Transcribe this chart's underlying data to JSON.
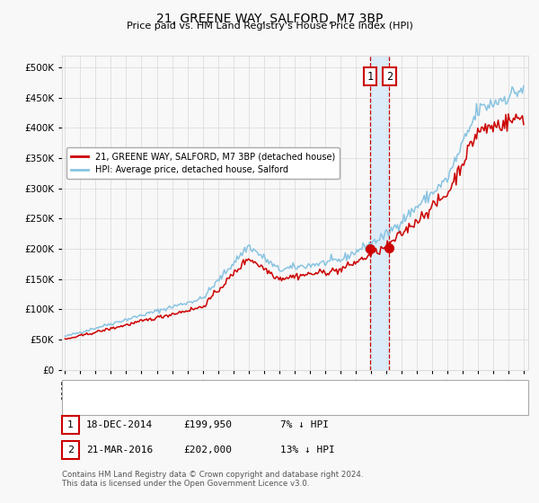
{
  "title": "21, GREENE WAY, SALFORD, M7 3BP",
  "subtitle": "Price paid vs. HM Land Registry's House Price Index (HPI)",
  "legend_line1": "21, GREENE WAY, SALFORD, M7 3BP (detached house)",
  "legend_line2": "HPI: Average price, detached house, Salford",
  "annotation1_label": "1",
  "annotation1_date": "18-DEC-2014",
  "annotation1_price": "£199,950",
  "annotation1_hpi": "7% ↓ HPI",
  "annotation2_label": "2",
  "annotation2_date": "21-MAR-2016",
  "annotation2_price": "£202,000",
  "annotation2_hpi": "13% ↓ HPI",
  "footnote": "Contains HM Land Registry data © Crown copyright and database right 2024.\nThis data is licensed under the Open Government Licence v3.0.",
  "hpi_color": "#89c4e1",
  "price_color": "#cc0000",
  "marker_color": "#cc0000",
  "vline_color": "#cc0000",
  "vshade_color": "#d6eaf8",
  "annotation_box_color": "#cc0000",
  "background_color": "#f8f8f8",
  "grid_color": "#dddddd",
  "ylim_min": 0,
  "ylim_max": 520000,
  "transaction1_year": 2014.96,
  "transaction2_year": 2016.22,
  "transaction1_price": 199950,
  "transaction2_price": 202000
}
